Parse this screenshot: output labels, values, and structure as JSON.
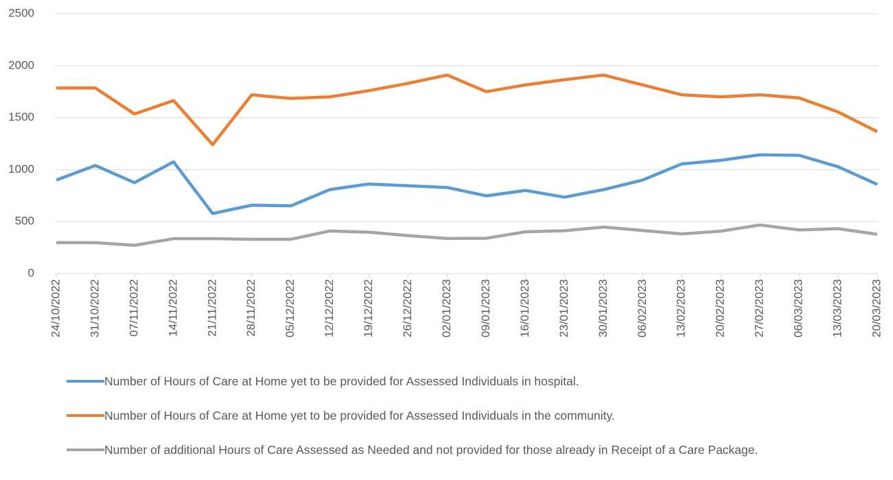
{
  "chart_data": {
    "type": "line",
    "categories": [
      "24/10/2022",
      "31/10/2022",
      "07/11/2022",
      "14/11/2022",
      "21/11/2022",
      "28/11/2022",
      "05/12/2022",
      "12/12/2022",
      "19/12/2022",
      "26/12/2022",
      "02/01/2023",
      "09/01/2023",
      "16/01/2023",
      "23/01/2023",
      "30/01/2023",
      "06/02/2023",
      "13/02/2023",
      "20/02/2023",
      "27/02/2023",
      "06/03/2023",
      "13/03/2023",
      "20/03/2023"
    ],
    "series": [
      {
        "name": "Number of Hours of Care at Home yet to be provided for Assessed Individuals in hospital.",
        "color": "#5b9bd5",
        "values": [
          900,
          1040,
          875,
          1075,
          578,
          658,
          652,
          808,
          862,
          845,
          828,
          748,
          800,
          735,
          808,
          900,
          1055,
          1090,
          1143,
          1138,
          1028,
          858
        ]
      },
      {
        "name": "Number of Hours of Care at Home yet to be provided for Assessed Individuals in the community.",
        "color": "#ed7d31",
        "values": [
          1785,
          1785,
          1535,
          1665,
          1240,
          1720,
          1685,
          1700,
          1760,
          1830,
          1910,
          1750,
          1815,
          1865,
          1910,
          1815,
          1720,
          1700,
          1720,
          1690,
          1555,
          1365
        ]
      },
      {
        "name": "Number of additional Hours of Care Assessed as Needed and not provided for those already in Receipt of a Care Package.",
        "color": "#a5a5a5",
        "values": [
          298,
          298,
          272,
          336,
          336,
          330,
          330,
          410,
          398,
          365,
          338,
          340,
          402,
          412,
          448,
          415,
          382,
          408,
          468,
          420,
          432,
          378
        ]
      }
    ],
    "ylim": [
      0,
      2500
    ],
    "yticks": [
      0,
      500,
      1000,
      1500,
      2000,
      2500
    ],
    "grid": true
  }
}
